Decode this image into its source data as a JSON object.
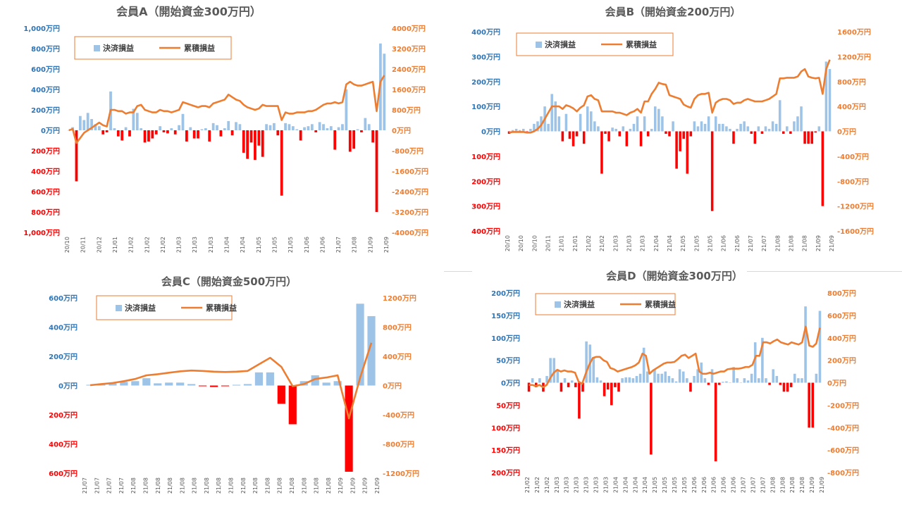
{
  "colors": {
    "pos_bar": "#9dc3e6",
    "neg_bar": "#ff0000",
    "line": "#ed7d31",
    "left_axis_pos": "#2e75b6",
    "left_axis_neg": "#ff0000",
    "right_axis": "#ed7d31",
    "legend_border": "#ed7d31",
    "title": "#595959"
  },
  "chart_data": [
    {
      "type": "bar",
      "title": "会員A（開始資金300万円）",
      "legend": {
        "bar": "決済損益",
        "line": "累積損益",
        "position": "top-left"
      },
      "left_ticks": [
        "1,000万円",
        "800万円",
        "600万円",
        "400万円",
        "200万円",
        "0万円",
        "200万円",
        "400万円",
        "600万円",
        "800万円",
        "1,000万円"
      ],
      "right_ticks": [
        "4000万円",
        "3200万円",
        "2400万円",
        "1600万円",
        "800万円",
        "0万円",
        "-800万円",
        "-1600万円",
        "-2400万円",
        "-3200万円",
        "-4000万円"
      ],
      "ylim": [
        -1000,
        1000
      ],
      "y2lim": [
        -4000,
        4000
      ],
      "x_labels": [
        "20/10",
        "20/11",
        "20/12",
        "21/01",
        "21/02",
        "21/02",
        "21/02",
        "21/03",
        "21/03",
        "21/03",
        "21/04",
        "21/04",
        "21/05",
        "21/05",
        "21/05",
        "21/06",
        "21/06",
        "21/07",
        "21/08",
        "21/09",
        "21/09"
      ],
      "bars": [
        0,
        30,
        -500,
        140,
        100,
        170,
        110,
        60,
        40,
        -40,
        -20,
        380,
        20,
        -60,
        -100,
        30,
        -60,
        210,
        170,
        20,
        -120,
        -110,
        -80,
        -40,
        40,
        -20,
        -30,
        20,
        -40,
        50,
        160,
        -110,
        30,
        -80,
        -80,
        10,
        20,
        -110,
        70,
        50,
        -60,
        20,
        90,
        -50,
        80,
        60,
        -220,
        -280,
        -120,
        -290,
        -150,
        -260,
        60,
        50,
        70,
        -50,
        -640,
        70,
        60,
        40,
        10,
        -100,
        30,
        40,
        60,
        -20,
        80,
        60,
        20,
        40,
        -190,
        30,
        60,
        400,
        -210,
        -180,
        10,
        -20,
        120,
        60,
        -120,
        -800,
        850,
        750
      ],
      "cumulative": [
        0,
        50,
        -500,
        -300,
        -100,
        0,
        100,
        200,
        300,
        200,
        150,
        800,
        800,
        750,
        750,
        650,
        700,
        700,
        950,
        1000,
        800,
        750,
        700,
        700,
        800,
        750,
        750,
        700,
        750,
        800,
        1100,
        1050,
        1000,
        950,
        900,
        950,
        950,
        900,
        1050,
        1100,
        1150,
        1200,
        1400,
        1300,
        1200,
        1150,
        1000,
        900,
        850,
        800,
        850,
        1000,
        950,
        950,
        950,
        950,
        400,
        700,
        650,
        650,
        700,
        700,
        700,
        750,
        750,
        800,
        900,
        1000,
        1050,
        1050,
        1100,
        1050,
        1100,
        1800,
        1900,
        1800,
        1750,
        1750,
        1800,
        1850,
        1900,
        750,
        1900,
        2150
      ]
    },
    {
      "type": "bar",
      "title": "会員B（開始資金200万円）",
      "legend": {
        "bar": "決済損益",
        "line": "累積損益",
        "position": "top-left"
      },
      "left_ticks": [
        "400万円",
        "300万円",
        "200万円",
        "100万円",
        "0万円",
        "100万円",
        "200万円",
        "300万円",
        "400万円"
      ],
      "right_ticks": [
        "1600万円",
        "1200万円",
        "800万円",
        "400万円",
        "0万円",
        "-400万円",
        "-800万円",
        "-1200万円",
        "-1600万円"
      ],
      "ylim": [
        -400,
        400
      ],
      "y2lim": [
        -1600,
        1600
      ],
      "x_labels": [
        "20/10",
        "20/10",
        "20/10",
        "20/11",
        "21/01",
        "21/01",
        "21/02",
        "21/02",
        "21/03",
        "21/03",
        "21/03",
        "21/04",
        "21/04",
        "21/05",
        "21/05",
        "21/05",
        "21/06",
        "21/06",
        "21/07",
        "21/07",
        "21/08",
        "21/08",
        "21/08",
        "21/09",
        "21/09"
      ],
      "bars": [
        -10,
        5,
        10,
        5,
        10,
        -5,
        10,
        30,
        40,
        60,
        100,
        30,
        150,
        120,
        60,
        -40,
        70,
        -30,
        -60,
        -20,
        70,
        -50,
        100,
        80,
        40,
        20,
        -170,
        -10,
        -40,
        15,
        10,
        -20,
        20,
        -60,
        10,
        30,
        60,
        -60,
        60,
        -20,
        10,
        100,
        90,
        60,
        -10,
        -20,
        40,
        -150,
        -80,
        -30,
        -170,
        -20,
        40,
        20,
        40,
        30,
        60,
        -320,
        60,
        30,
        30,
        20,
        10,
        -50,
        10,
        30,
        40,
        20,
        -10,
        -50,
        20,
        -10,
        20,
        10,
        40,
        30,
        125,
        -10,
        20,
        -10,
        40,
        60,
        100,
        -50,
        -50,
        -50,
        -5,
        20,
        -300,
        280,
        250
      ],
      "cumulative": [
        -20,
        -10,
        -10,
        -10,
        -10,
        -20,
        -20,
        0,
        40,
        100,
        200,
        300,
        400,
        400,
        400,
        360,
        420,
        400,
        370,
        320,
        380,
        420,
        560,
        580,
        520,
        500,
        320,
        320,
        320,
        320,
        300,
        300,
        280,
        260,
        300,
        320,
        360,
        300,
        480,
        480,
        600,
        680,
        780,
        760,
        750,
        580,
        560,
        540,
        520,
        430,
        400,
        380,
        520,
        580,
        600,
        600,
        620,
        300,
        460,
        500,
        520,
        520,
        500,
        440,
        460,
        460,
        500,
        520,
        500,
        480,
        480,
        480,
        500,
        520,
        560,
        600,
        850,
        850,
        860,
        860,
        860,
        880,
        960,
        1000,
        880,
        860,
        850,
        860,
        600,
        1000,
        1150
      ]
    },
    {
      "type": "bar",
      "title": "会員C（開始資金500万円）",
      "legend": {
        "bar": "決済損益",
        "line": "累積損益",
        "position": "top-left"
      },
      "left_ticks": [
        "600万円",
        "400万円",
        "200万円",
        "0万円",
        "200万円",
        "400万円",
        "600万円"
      ],
      "right_ticks": [
        "1200万円",
        "800万円",
        "400万円",
        "0万円",
        "-400万円",
        "-800万円",
        "-1200万円"
      ],
      "ylim": [
        -600,
        600
      ],
      "y2lim": [
        -1200,
        1200
      ],
      "x_labels": [
        "21/07",
        "21/07",
        "21/07",
        "21/07",
        "21/08",
        "21/08",
        "21/08",
        "21/08",
        "21/08",
        "21/08",
        "21/08",
        "21/08",
        "21/08",
        "21/08",
        "21/08",
        "21/08",
        "21/08",
        "21/08",
        "21/08",
        "21/08",
        "21/08",
        "21/09",
        "21/09",
        "21/09",
        "21/09"
      ],
      "bars": [
        5,
        10,
        15,
        25,
        30,
        50,
        15,
        20,
        20,
        10,
        -5,
        -10,
        -5,
        5,
        10,
        90,
        90,
        -125,
        -265,
        30,
        70,
        20,
        30,
        -590,
        560,
        475
      ],
      "cumulative": [
        5,
        20,
        35,
        60,
        90,
        140,
        155,
        175,
        195,
        205,
        200,
        190,
        185,
        190,
        200,
        290,
        380,
        255,
        -10,
        20,
        90,
        110,
        140,
        -450,
        110,
        585
      ]
    },
    {
      "type": "bar",
      "title": "会員D（開始資金300万円）",
      "legend": {
        "bar": "決済損益",
        "line": "累積損益",
        "position": "top-left"
      },
      "left_ticks": [
        "200万円",
        "150万円",
        "100万円",
        "50万円",
        "0万円",
        "50万円",
        "100万円",
        "150万円",
        "200万円"
      ],
      "right_ticks": [
        "800万円",
        "600万円",
        "400万円",
        "200万円",
        "0万円",
        "-200万円",
        "-400万円",
        "-600万円",
        "-800万円"
      ],
      "ylim": [
        -200,
        200
      ],
      "y2lim": [
        -800,
        800
      ],
      "x_labels": [
        "21/02",
        "21/02",
        "21/02",
        "21/03",
        "21/03",
        "21/03",
        "21/03",
        "21/03",
        "21/03",
        "21/04",
        "21/04",
        "21/04",
        "21/04",
        "21/05",
        "21/05",
        "21/05",
        "21/05",
        "21/06",
        "21/06",
        "21/06",
        "21/06",
        "21/06",
        "21/07",
        "21/07",
        "21/07",
        "21/08",
        "21/08",
        "21/08",
        "21/08",
        "21/09",
        "21/09"
      ],
      "bars": [
        -20,
        10,
        -10,
        10,
        -20,
        15,
        55,
        55,
        30,
        -20,
        10,
        -10,
        5,
        -10,
        -80,
        -20,
        92,
        85,
        55,
        12,
        5,
        -30,
        -15,
        -50,
        -10,
        -20,
        10,
        12,
        12,
        10,
        15,
        20,
        78,
        25,
        -160,
        30,
        20,
        20,
        25,
        15,
        10,
        3,
        30,
        25,
        10,
        -20,
        15,
        30,
        45,
        10,
        -5,
        30,
        -175,
        -5,
        2,
        3,
        0,
        35,
        10,
        0,
        10,
        5,
        20,
        90,
        10,
        100,
        10,
        -5,
        30,
        15,
        -5,
        -20,
        -20,
        -10,
        20,
        10,
        10,
        170,
        -100,
        -100,
        20,
        160
      ],
      "cumulative": [
        -20,
        -20,
        -30,
        -20,
        -40,
        -20,
        40,
        90,
        115,
        100,
        110,
        100,
        100,
        90,
        10,
        -10,
        80,
        160,
        220,
        230,
        230,
        200,
        185,
        130,
        120,
        100,
        110,
        120,
        130,
        140,
        155,
        180,
        260,
        240,
        80,
        110,
        130,
        150,
        170,
        180,
        180,
        185,
        210,
        240,
        250,
        220,
        240,
        260,
        100,
        80,
        80,
        90,
        80,
        90,
        100,
        100,
        120,
        125,
        125,
        125,
        130,
        140,
        140,
        160,
        240,
        240,
        360,
        360,
        350,
        370,
        385,
        360,
        350,
        340,
        360,
        350,
        340,
        360,
        500,
        330,
        320,
        350,
        490
      ]
    }
  ]
}
